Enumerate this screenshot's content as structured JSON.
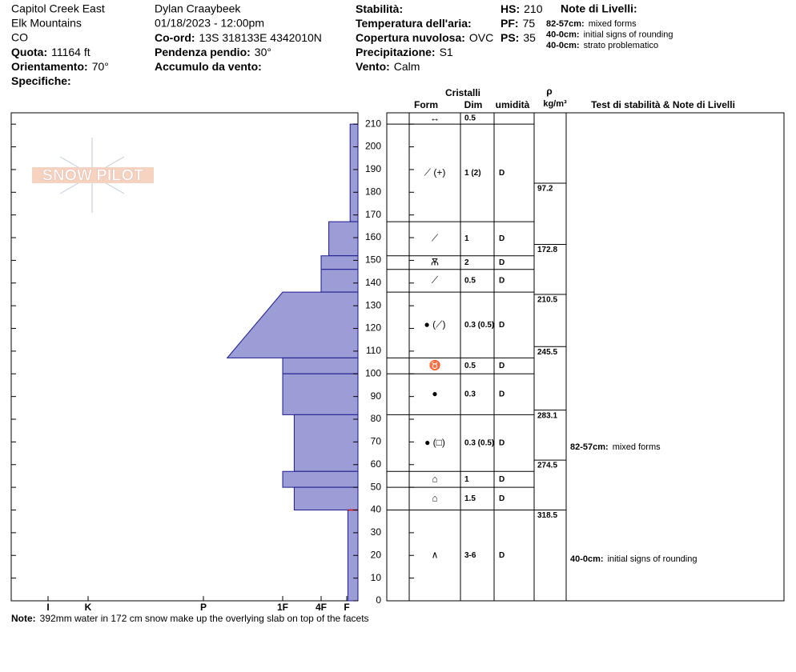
{
  "header": {
    "location": "Capitol Creek East",
    "range": "Elk Mountains",
    "state": "CO",
    "elevation": {
      "label": "Quota:",
      "value": "11164 ft"
    },
    "aspect": {
      "label": "Orientamento:",
      "value": "70°"
    },
    "specifics": {
      "label": "Specifiche:"
    },
    "observer": "Dylan Craaybeek",
    "datetime": "01/18/2023 - 12:00pm",
    "coords": {
      "label": "Co-ord:",
      "value": "13S 318133E 4342010N"
    },
    "slope": {
      "label": "Pendenza pendio:",
      "value": "30°"
    },
    "wind_loading": {
      "label": "Accumulo da vento:"
    },
    "stability": {
      "label": "Stabilità:"
    },
    "air_temp": {
      "label": "Temperatura dell'aria:"
    },
    "sky": {
      "label": "Copertura nuvolosa:",
      "value": "OVC"
    },
    "precip": {
      "label": "Precipitazione:",
      "value": "S1"
    },
    "wind": {
      "label": "Vento:",
      "value": "Calm"
    },
    "hs": {
      "label": "HS:",
      "value": "210"
    },
    "pf": {
      "label": "PF:",
      "value": "75"
    },
    "ps": {
      "label": "PS:",
      "value": "35"
    },
    "layer_notes_title": "Note di Livelli:",
    "layer_notes": [
      {
        "range": "82-57cm:",
        "text": "mixed forms"
      },
      {
        "range": "40-0cm:",
        "text": "initial signs of rounding"
      },
      {
        "range": "40-0cm:",
        "text": "strato problematico"
      }
    ]
  },
  "logo": "SNOW PILOT",
  "table_headers": {
    "crystals": "Cristalli",
    "form": "Form",
    "size": "Dim",
    "moisture": "umidità",
    "rho": "ρ",
    "density_unit": "kg/m³",
    "tests": "Test di stabilità & Note di Livelli"
  },
  "chart_data": {
    "type": "snow-profile",
    "ylim": [
      0,
      215
    ],
    "yticks": [
      0,
      10,
      20,
      30,
      40,
      50,
      60,
      70,
      80,
      90,
      100,
      110,
      120,
      130,
      140,
      150,
      160,
      170,
      180,
      190,
      200,
      210
    ],
    "xlim": [
      7,
      0
    ],
    "xticks": [
      {
        "value": 6,
        "label": "I"
      },
      {
        "value": 5,
        "label": "K"
      },
      {
        "value": 4,
        "label": "P"
      },
      {
        "value": 3,
        "label": "1F"
      },
      {
        "value": 2,
        "label": "4F"
      },
      {
        "value": 1,
        "label": "F"
      }
    ],
    "color": "#9c9cd6",
    "layers": [
      {
        "top": 210,
        "bottom": 210,
        "form": "↔",
        "size": "0.5"
      },
      {
        "top": 210,
        "bottom": 167,
        "hardness": 0.7,
        "form": "⟋ (+)",
        "size": "1 (2)",
        "moisture": "D"
      },
      {
        "top": 167,
        "bottom": 152,
        "hardness": 1.7,
        "form": "⟋",
        "size": "1",
        "moisture": "D"
      },
      {
        "top": 152,
        "bottom": 146,
        "hardness": 2,
        "form": "Ѫ",
        "size": "2",
        "moisture": "D"
      },
      {
        "top": 146,
        "bottom": 136,
        "hardness": 2,
        "form": "⟋",
        "size": "0.5",
        "moisture": "D"
      },
      {
        "top": 136,
        "bottom": 107,
        "hardness": 3,
        "hardness_bottom": 3.7,
        "form": "● (⟋)",
        "size": "0.3 (0.5)",
        "moisture": "D"
      },
      {
        "top": 107,
        "bottom": 100,
        "hardness": 3,
        "form": "♉",
        "size": "0.5",
        "moisture": "D"
      },
      {
        "top": 100,
        "bottom": 82,
        "hardness": 3,
        "form": "●",
        "size": "0.3",
        "moisture": "D"
      },
      {
        "top": 82,
        "bottom": 57,
        "hardness": 2.7,
        "form": "● (□)",
        "size": "0.3 (0.5)",
        "moisture": "D"
      },
      {
        "top": 57,
        "bottom": 50,
        "hardness": 3,
        "form": "⌂",
        "size": "1",
        "moisture": "D"
      },
      {
        "top": 50,
        "bottom": 40,
        "hardness": 2.7,
        "form": "⌂",
        "size": "1.5",
        "moisture": "D"
      },
      {
        "top": 40,
        "bottom": 0,
        "hardness": 0.9,
        "form": "∧",
        "size": "3-6",
        "moisture": "D"
      }
    ],
    "density": [
      {
        "top": 184,
        "value": 97.2
      },
      {
        "top": 157,
        "value": 172.8
      },
      {
        "top": 135,
        "value": 210.5
      },
      {
        "top": 112,
        "value": 245.5
      },
      {
        "top": 84,
        "value": 283.1
      },
      {
        "top": 62,
        "value": 274.5
      },
      {
        "top": 40,
        "value": 318.5
      }
    ],
    "notes": [
      {
        "range": "82-57cm:",
        "text": "mixed forms"
      },
      {
        "range": "40-0cm:",
        "text": "initial signs of rounding"
      }
    ]
  },
  "footer": {
    "label": "Note:",
    "text": "392mm water in 172 cm snow make up the overlying slab on top of the facets"
  }
}
